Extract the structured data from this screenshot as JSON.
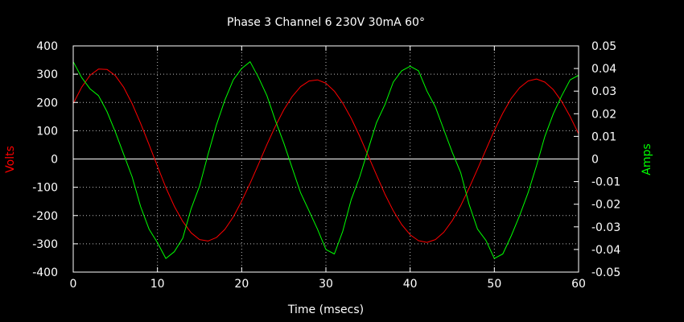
{
  "chart_data": {
    "type": "line",
    "title": "Phase 3 Channel 6  230V 30mA 60°",
    "xlabel": "Time (msecs)",
    "ylabel": "Volts",
    "y2label": "Amps",
    "xlim": [
      0,
      60
    ],
    "ylim": [
      -400,
      400
    ],
    "y2lim": [
      -0.05,
      0.05
    ],
    "xticks": [
      0,
      10,
      20,
      30,
      40,
      50,
      60
    ],
    "yticks": [
      -400,
      -300,
      -200,
      -100,
      0,
      100,
      200,
      300,
      400
    ],
    "y2ticks": [
      -0.05,
      -0.04,
      -0.03,
      -0.02,
      -0.01,
      0,
      0.01,
      0.02,
      0.03,
      0.04,
      0.05
    ],
    "y2tick_labels": [
      "-0.05",
      "-0.04",
      "-0.03",
      "-0.02",
      "-0.01",
      "0",
      "0.01",
      "0.02",
      "0.03",
      "0.04",
      "0.05"
    ],
    "grid": true,
    "background": "#000000",
    "colors": {
      "text": "#ffffff",
      "grid": "#bbbbbb",
      "volts": "#ff0000",
      "amps": "#00ff00",
      "ylabel": "#ff0000",
      "y2label": "#00ff00"
    },
    "series": [
      {
        "name": "Volts",
        "axis": "y",
        "x": [
          0,
          1,
          2,
          3,
          4,
          5,
          6,
          7,
          8,
          9,
          10,
          11,
          12,
          13,
          14,
          15,
          16,
          17,
          18,
          19,
          20,
          21,
          22,
          23,
          24,
          25,
          26,
          27,
          28,
          29,
          30,
          31,
          32,
          33,
          34,
          35,
          36,
          37,
          38,
          39,
          40,
          41,
          42,
          43,
          44,
          45,
          46,
          47,
          48,
          49,
          50,
          51,
          52,
          53,
          54,
          55,
          56,
          57,
          58,
          59,
          60
        ],
        "y": [
          196,
          254,
          296,
          318,
          317,
          295,
          253,
          195,
          126,
          51,
          -26,
          -101,
          -167,
          -221,
          -261,
          -285,
          -290,
          -278,
          -249,
          -205,
          -149,
          -86,
          -18,
          51,
          116,
          174,
          221,
          256,
          276,
          280,
          268,
          240,
          198,
          144,
          81,
          13,
          -56,
          -124,
          -183,
          -232,
          -268,
          -289,
          -295,
          -285,
          -259,
          -218,
          -165,
          -103,
          -36,
          33,
          101,
          162,
          214,
          252,
          276,
          283,
          272,
          245,
          203,
          150,
          89
        ]
      },
      {
        "name": "Amps",
        "axis": "y2",
        "x": [
          0,
          1,
          2,
          3,
          4,
          5,
          6,
          7,
          8,
          9,
          10,
          11,
          12,
          13,
          14,
          15,
          16,
          17,
          18,
          19,
          20,
          21,
          22,
          23,
          24,
          25,
          26,
          27,
          28,
          29,
          30,
          31,
          32,
          33,
          34,
          35,
          36,
          37,
          38,
          39,
          40,
          41,
          42,
          43,
          44,
          45,
          46,
          47,
          48,
          49,
          50,
          51,
          52,
          53,
          54,
          55,
          56,
          57,
          58,
          59,
          60
        ],
        "y": [
          0.043,
          0.036,
          0.031,
          0.028,
          0.021,
          0.012,
          0.002,
          -0.008,
          -0.021,
          -0.031,
          -0.037,
          -0.044,
          -0.041,
          -0.035,
          -0.022,
          -0.012,
          0.002,
          0.015,
          0.026,
          0.035,
          0.04,
          0.043,
          0.036,
          0.028,
          0.017,
          0.007,
          -0.004,
          -0.015,
          -0.023,
          -0.031,
          -0.04,
          -0.042,
          -0.032,
          -0.018,
          -0.008,
          0.004,
          0.016,
          0.024,
          0.034,
          0.039,
          0.041,
          0.039,
          0.03,
          0.023,
          0.013,
          0.003,
          -0.006,
          -0.02,
          -0.031,
          -0.036,
          -0.044,
          -0.042,
          -0.034,
          -0.025,
          -0.015,
          -0.003,
          0.01,
          0.02,
          0.028,
          0.035,
          0.037
        ]
      }
    ]
  }
}
